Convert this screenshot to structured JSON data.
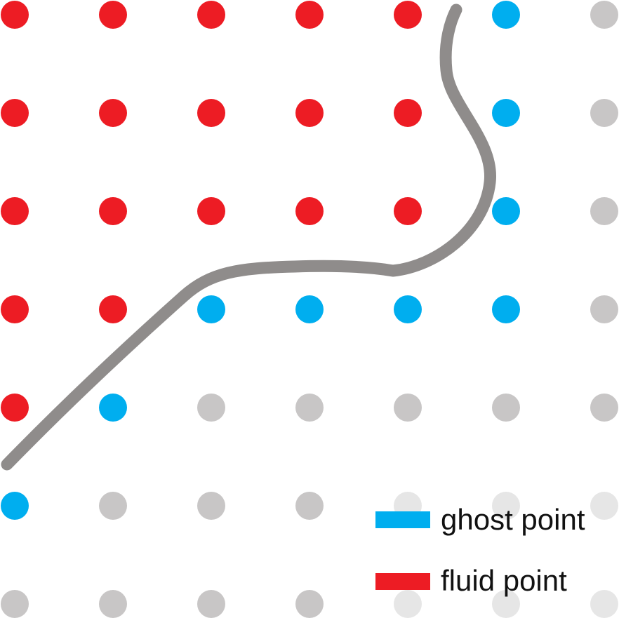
{
  "grid": {
    "rows": [
      [
        "fluid",
        "fluid",
        "fluid",
        "fluid",
        "fluid",
        "ghost",
        "solid"
      ],
      [
        "fluid",
        "fluid",
        "fluid",
        "fluid",
        "fluid",
        "ghost",
        "solid"
      ],
      [
        "fluid",
        "fluid",
        "fluid",
        "fluid",
        "fluid",
        "ghost",
        "solid"
      ],
      [
        "fluid",
        "fluid",
        "ghost",
        "ghost",
        "ghost",
        "ghost",
        "solid"
      ],
      [
        "fluid",
        "ghost",
        "solid",
        "solid",
        "solid",
        "solid",
        "solid"
      ],
      [
        "ghost",
        "solid",
        "solid",
        "solid",
        "faded",
        "faded",
        "faded"
      ],
      [
        "solid",
        "solid",
        "solid",
        "solid",
        "faded",
        "faded",
        "faded"
      ]
    ]
  },
  "colors": {
    "fluid": "#ed1c24",
    "ghost": "#00aeef",
    "solid": "#c8c6c6",
    "faded": "#e6e6e6",
    "boundary": "#8f8c8b"
  },
  "legend": {
    "items": [
      {
        "key": "ghost",
        "label": "ghost point"
      },
      {
        "key": "fluid",
        "label": "fluid point"
      }
    ]
  }
}
